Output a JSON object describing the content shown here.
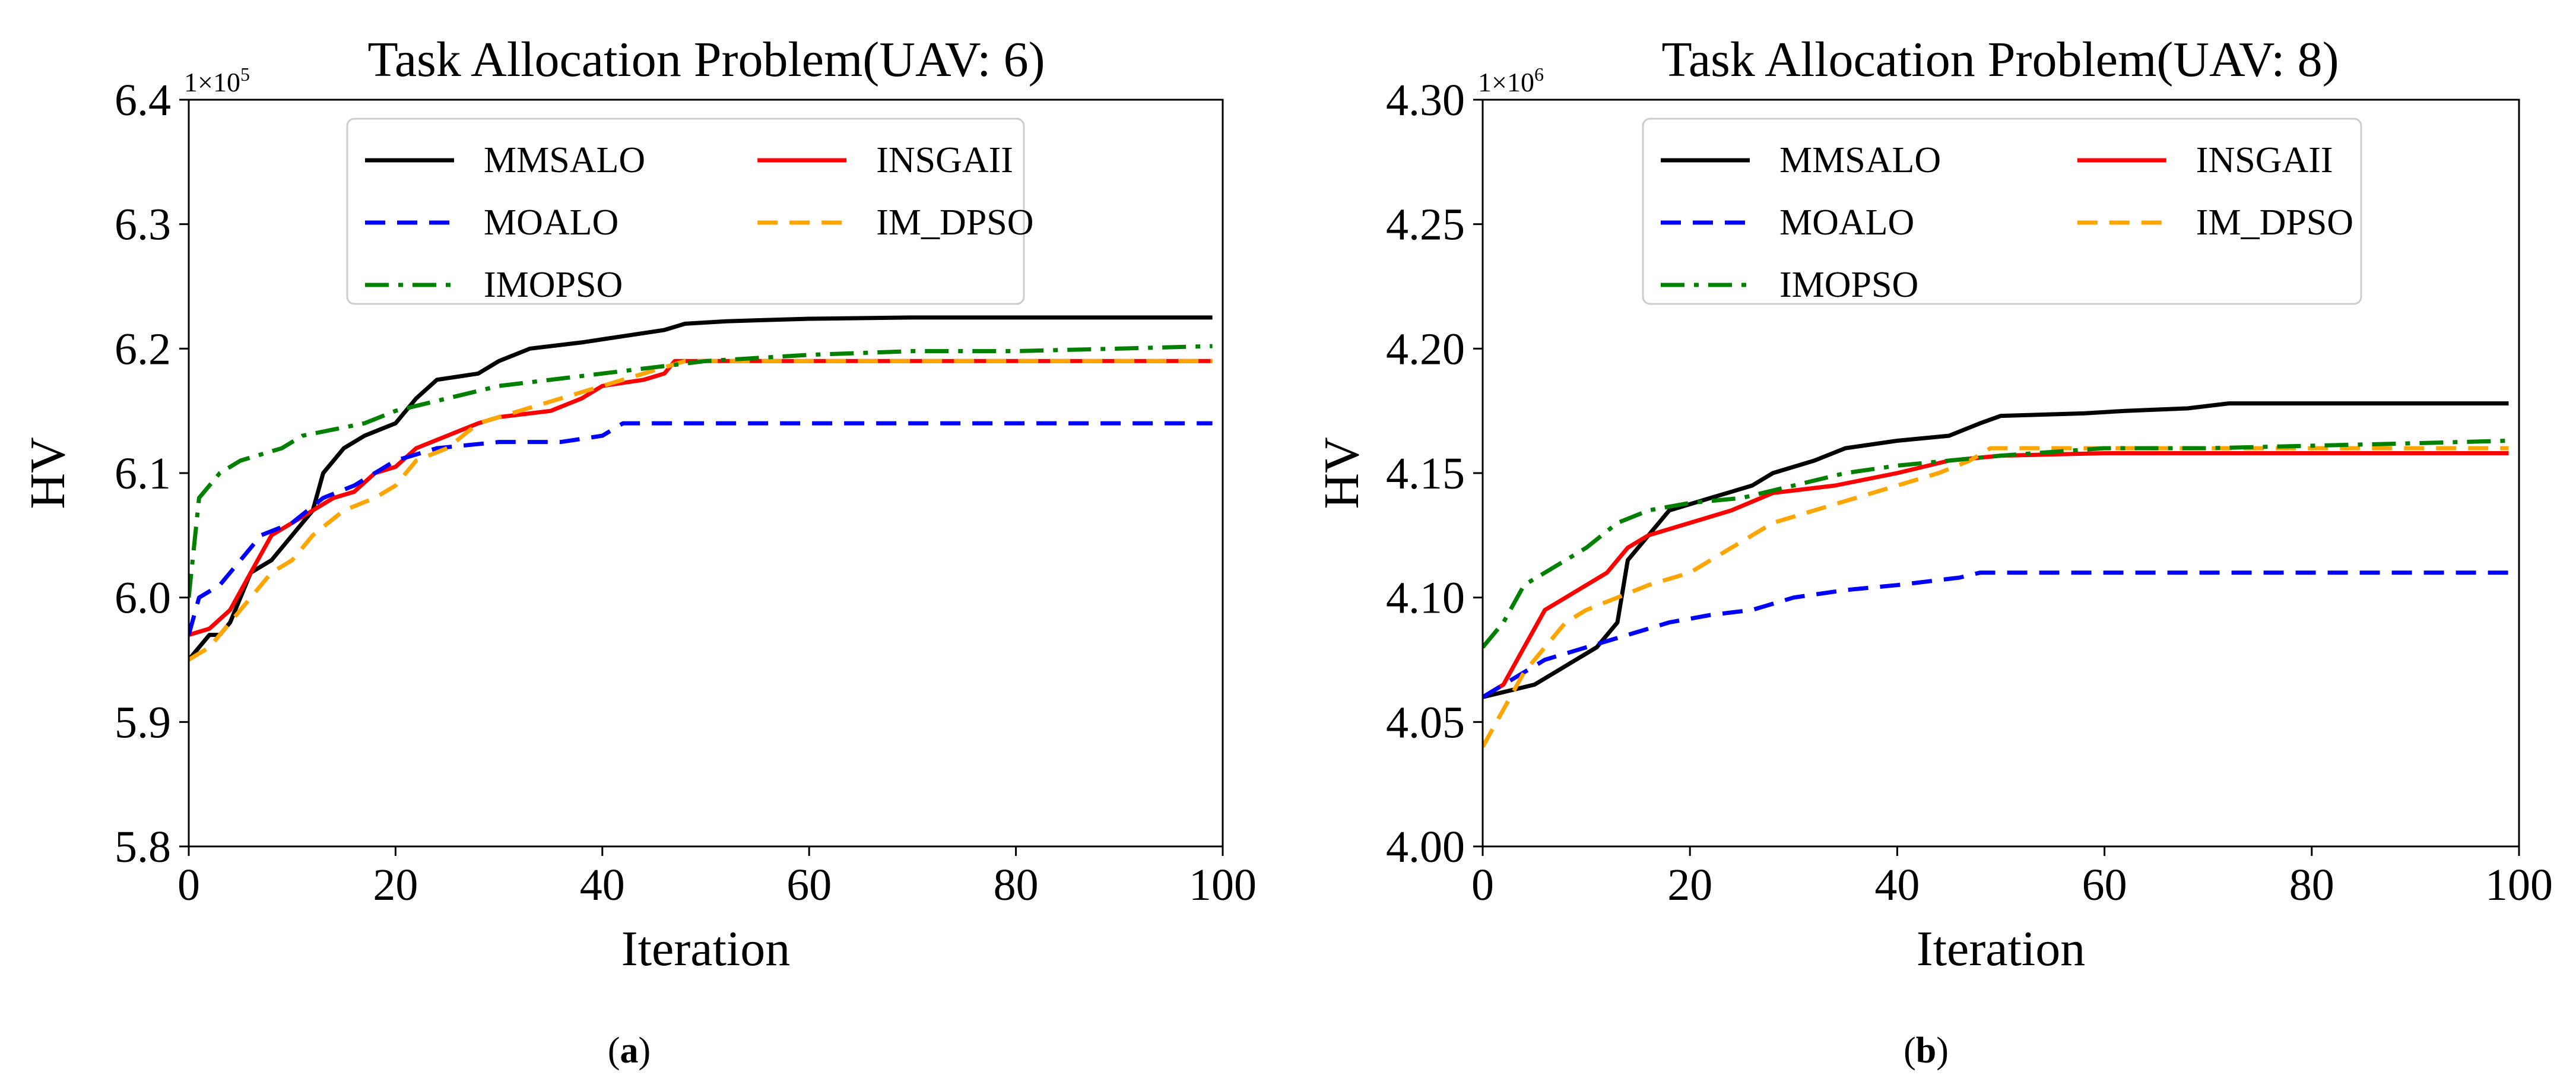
{
  "chart_data": [
    {
      "id": "a",
      "type": "line",
      "title": "Task Allocation Problem(UAV: 6)",
      "xlabel": "Iteration",
      "ylabel": "HV",
      "y_multiplier": "1×10",
      "y_exponent": "5",
      "xlim": [
        0,
        100
      ],
      "ylim": [
        5.8,
        6.4
      ],
      "xticks": [
        0,
        20,
        40,
        60,
        80,
        100
      ],
      "xtick_labels": [
        "0",
        "20",
        "40",
        "60",
        "80",
        "100"
      ],
      "yticks": [
        5.8,
        5.9,
        6.0,
        6.1,
        6.2,
        6.3,
        6.4
      ],
      "ytick_labels": [
        "5.8",
        "5.9",
        "6.0",
        "6.1",
        "6.2",
        "6.3",
        "6.4"
      ],
      "caption_label": "a",
      "legend_position": "top-center",
      "series": [
        {
          "name": "MMSALO",
          "color": "#000000",
          "style": "solid",
          "points": [
            [
              0,
              5.95
            ],
            [
              1,
              5.96
            ],
            [
              2,
              5.97
            ],
            [
              3,
              5.97
            ],
            [
              4,
              5.98
            ],
            [
              5,
              6.0
            ],
            [
              6,
              6.02
            ],
            [
              8,
              6.03
            ],
            [
              10,
              6.05
            ],
            [
              12,
              6.07
            ],
            [
              13,
              6.1
            ],
            [
              15,
              6.12
            ],
            [
              17,
              6.13
            ],
            [
              20,
              6.14
            ],
            [
              22,
              6.16
            ],
            [
              24,
              6.175
            ],
            [
              28,
              6.18
            ],
            [
              30,
              6.19
            ],
            [
              33,
              6.2
            ],
            [
              38,
              6.205
            ],
            [
              42,
              6.21
            ],
            [
              46,
              6.215
            ],
            [
              48,
              6.22
            ],
            [
              52,
              6.222
            ],
            [
              60,
              6.224
            ],
            [
              70,
              6.225
            ],
            [
              80,
              6.225
            ],
            [
              90,
              6.225
            ],
            [
              99,
              6.225
            ]
          ]
        },
        {
          "name": "INSGAII",
          "color": "#ff0000",
          "style": "solid",
          "points": [
            [
              0,
              5.97
            ],
            [
              2,
              5.975
            ],
            [
              4,
              5.99
            ],
            [
              6,
              6.02
            ],
            [
              8,
              6.05
            ],
            [
              10,
              6.06
            ],
            [
              12,
              6.07
            ],
            [
              14,
              6.08
            ],
            [
              16,
              6.085
            ],
            [
              18,
              6.1
            ],
            [
              20,
              6.105
            ],
            [
              22,
              6.12
            ],
            [
              25,
              6.13
            ],
            [
              28,
              6.14
            ],
            [
              30,
              6.145
            ],
            [
              35,
              6.15
            ],
            [
              38,
              6.16
            ],
            [
              40,
              6.17
            ],
            [
              44,
              6.175
            ],
            [
              46,
              6.18
            ],
            [
              47,
              6.19
            ],
            [
              50,
              6.19
            ],
            [
              60,
              6.19
            ],
            [
              70,
              6.19
            ],
            [
              80,
              6.19
            ],
            [
              90,
              6.19
            ],
            [
              99,
              6.19
            ]
          ]
        },
        {
          "name": "MOALO",
          "color": "#0000ff",
          "style": "dashed",
          "points": [
            [
              0,
              5.97
            ],
            [
              1,
              6.0
            ],
            [
              3,
              6.01
            ],
            [
              5,
              6.03
            ],
            [
              7,
              6.05
            ],
            [
              10,
              6.06
            ],
            [
              13,
              6.08
            ],
            [
              16,
              6.09
            ],
            [
              18,
              6.1
            ],
            [
              20,
              6.11
            ],
            [
              24,
              6.12
            ],
            [
              30,
              6.125
            ],
            [
              36,
              6.125
            ],
            [
              40,
              6.13
            ],
            [
              42,
              6.14
            ],
            [
              50,
              6.14
            ],
            [
              60,
              6.14
            ],
            [
              70,
              6.14
            ],
            [
              80,
              6.14
            ],
            [
              90,
              6.14
            ],
            [
              99,
              6.14
            ]
          ]
        },
        {
          "name": "IM_DPSO",
          "color": "#ffa500",
          "style": "dashed",
          "points": [
            [
              0,
              5.95
            ],
            [
              2,
              5.96
            ],
            [
              4,
              5.98
            ],
            [
              6,
              6.0
            ],
            [
              8,
              6.02
            ],
            [
              10,
              6.03
            ],
            [
              12,
              6.05
            ],
            [
              15,
              6.07
            ],
            [
              18,
              6.08
            ],
            [
              20,
              6.09
            ],
            [
              22,
              6.11
            ],
            [
              25,
              6.12
            ],
            [
              28,
              6.14
            ],
            [
              32,
              6.15
            ],
            [
              36,
              6.16
            ],
            [
              40,
              6.17
            ],
            [
              44,
              6.18
            ],
            [
              48,
              6.19
            ],
            [
              55,
              6.19
            ],
            [
              70,
              6.19
            ],
            [
              85,
              6.19
            ],
            [
              99,
              6.19
            ]
          ]
        },
        {
          "name": "IMOPSO",
          "color": "#008000",
          "style": "dashdot",
          "points": [
            [
              0,
              6.0
            ],
            [
              1,
              6.08
            ],
            [
              2,
              6.09
            ],
            [
              3,
              6.1
            ],
            [
              5,
              6.11
            ],
            [
              7,
              6.115
            ],
            [
              9,
              6.12
            ],
            [
              11,
              6.13
            ],
            [
              14,
              6.135
            ],
            [
              17,
              6.14
            ],
            [
              20,
              6.15
            ],
            [
              25,
              6.16
            ],
            [
              30,
              6.17
            ],
            [
              35,
              6.175
            ],
            [
              40,
              6.18
            ],
            [
              45,
              6.185
            ],
            [
              50,
              6.19
            ],
            [
              60,
              6.195
            ],
            [
              70,
              6.198
            ],
            [
              80,
              6.198
            ],
            [
              90,
              6.2
            ],
            [
              99,
              6.202
            ]
          ]
        }
      ]
    },
    {
      "id": "b",
      "type": "line",
      "title": "Task Allocation Problem(UAV: 8)",
      "xlabel": "Iteration",
      "ylabel": "HV",
      "y_multiplier": "1×10",
      "y_exponent": "6",
      "xlim": [
        0,
        100
      ],
      "ylim": [
        4.0,
        4.3
      ],
      "xticks": [
        0,
        20,
        40,
        60,
        80,
        100
      ],
      "xtick_labels": [
        "0",
        "20",
        "40",
        "60",
        "80",
        "100"
      ],
      "yticks": [
        4.0,
        4.05,
        4.1,
        4.15,
        4.2,
        4.25,
        4.3
      ],
      "ytick_labels": [
        "4.00",
        "4.05",
        "4.10",
        "4.15",
        "4.20",
        "4.25",
        "4.30"
      ],
      "caption_label": "b",
      "legend_position": "top-center",
      "series": [
        {
          "name": "MMSALO",
          "color": "#000000",
          "style": "solid",
          "points": [
            [
              0,
              4.06
            ],
            [
              2,
              4.062
            ],
            [
              5,
              4.065
            ],
            [
              7,
              4.07
            ],
            [
              9,
              4.075
            ],
            [
              11,
              4.08
            ],
            [
              13,
              4.09
            ],
            [
              14,
              4.115
            ],
            [
              16,
              4.125
            ],
            [
              18,
              4.135
            ],
            [
              22,
              4.14
            ],
            [
              26,
              4.145
            ],
            [
              28,
              4.15
            ],
            [
              32,
              4.155
            ],
            [
              35,
              4.16
            ],
            [
              40,
              4.163
            ],
            [
              45,
              4.165
            ],
            [
              48,
              4.17
            ],
            [
              50,
              4.173
            ],
            [
              58,
              4.174
            ],
            [
              62,
              4.175
            ],
            [
              68,
              4.176
            ],
            [
              72,
              4.178
            ],
            [
              76,
              4.178
            ],
            [
              85,
              4.178
            ],
            [
              99,
              4.178
            ]
          ]
        },
        {
          "name": "INSGAII",
          "color": "#ff0000",
          "style": "solid",
          "points": [
            [
              0,
              4.06
            ],
            [
              2,
              4.065
            ],
            [
              4,
              4.08
            ],
            [
              6,
              4.095
            ],
            [
              8,
              4.1
            ],
            [
              10,
              4.105
            ],
            [
              12,
              4.11
            ],
            [
              14,
              4.12
            ],
            [
              16,
              4.125
            ],
            [
              20,
              4.13
            ],
            [
              24,
              4.135
            ],
            [
              28,
              4.142
            ],
            [
              34,
              4.145
            ],
            [
              40,
              4.15
            ],
            [
              45,
              4.155
            ],
            [
              50,
              4.157
            ],
            [
              60,
              4.158
            ],
            [
              70,
              4.158
            ],
            [
              80,
              4.158
            ],
            [
              90,
              4.158
            ],
            [
              99,
              4.158
            ]
          ]
        },
        {
          "name": "MOALO",
          "color": "#0000ff",
          "style": "dashed",
          "points": [
            [
              0,
              4.06
            ],
            [
              2,
              4.065
            ],
            [
              4,
              4.07
            ],
            [
              6,
              4.075
            ],
            [
              10,
              4.08
            ],
            [
              14,
              4.085
            ],
            [
              18,
              4.09
            ],
            [
              22,
              4.093
            ],
            [
              26,
              4.095
            ],
            [
              30,
              4.1
            ],
            [
              35,
              4.103
            ],
            [
              40,
              4.105
            ],
            [
              46,
              4.108
            ],
            [
              48,
              4.11
            ],
            [
              55,
              4.11
            ],
            [
              62,
              4.11
            ],
            [
              70,
              4.11
            ],
            [
              80,
              4.11
            ],
            [
              90,
              4.11
            ],
            [
              99,
              4.11
            ]
          ]
        },
        {
          "name": "IM_DPSO",
          "color": "#ffa500",
          "style": "dashed",
          "points": [
            [
              0,
              4.04
            ],
            [
              2,
              4.055
            ],
            [
              4,
              4.07
            ],
            [
              6,
              4.08
            ],
            [
              8,
              4.09
            ],
            [
              10,
              4.095
            ],
            [
              13,
              4.1
            ],
            [
              16,
              4.105
            ],
            [
              20,
              4.11
            ],
            [
              24,
              4.12
            ],
            [
              28,
              4.13
            ],
            [
              32,
              4.135
            ],
            [
              36,
              4.14
            ],
            [
              40,
              4.145
            ],
            [
              44,
              4.15
            ],
            [
              47,
              4.155
            ],
            [
              49,
              4.16
            ],
            [
              55,
              4.16
            ],
            [
              65,
              4.16
            ],
            [
              75,
              4.16
            ],
            [
              85,
              4.16
            ],
            [
              99,
              4.16
            ]
          ]
        },
        {
          "name": "IMOPSO",
          "color": "#008000",
          "style": "dashdot",
          "points": [
            [
              0,
              4.08
            ],
            [
              2,
              4.09
            ],
            [
              4,
              4.105
            ],
            [
              6,
              4.11
            ],
            [
              8,
              4.115
            ],
            [
              10,
              4.12
            ],
            [
              13,
              4.13
            ],
            [
              16,
              4.135
            ],
            [
              20,
              4.138
            ],
            [
              25,
              4.14
            ],
            [
              30,
              4.145
            ],
            [
              35,
              4.15
            ],
            [
              40,
              4.153
            ],
            [
              45,
              4.155
            ],
            [
              50,
              4.157
            ],
            [
              60,
              4.16
            ],
            [
              70,
              4.16
            ],
            [
              80,
              4.161
            ],
            [
              90,
              4.162
            ],
            [
              99,
              4.163
            ]
          ]
        }
      ]
    }
  ]
}
